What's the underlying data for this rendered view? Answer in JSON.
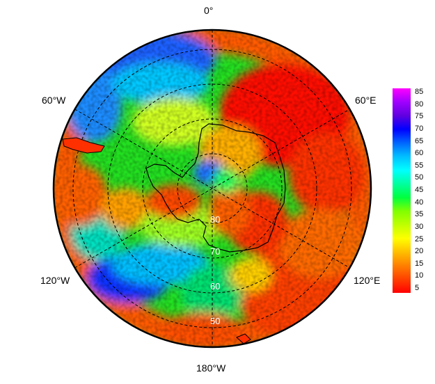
{
  "map": {
    "projection": "south-polar-stereographic",
    "longitude_labels": {
      "top": "0°",
      "left_upper": "60°W",
      "right_upper": "60°E",
      "left_lower": "120°W",
      "right_lower": "120°E",
      "bottom": "180°W"
    },
    "latitude_labels": [
      "80",
      "70",
      "60",
      "50"
    ],
    "gridlines": "dashed"
  },
  "colorbar": {
    "ticks": [
      "5",
      "10",
      "15",
      "20",
      "25",
      "30",
      "35",
      "40",
      "45",
      "50",
      "55",
      "60",
      "65",
      "70",
      "75",
      "80",
      "85"
    ],
    "colors": [
      "#ff0000",
      "#ff4000",
      "#ff8000",
      "#ffbf00",
      "#ffff00",
      "#bfff00",
      "#80ff00",
      "#00ff40",
      "#00ff9f",
      "#00ffff",
      "#00bfff",
      "#0066ff",
      "#0000ff",
      "#6000e0",
      "#a000ff",
      "#ff00ff"
    ]
  },
  "colors": {
    "land_outline": "#000000",
    "background": "#ffffff"
  }
}
